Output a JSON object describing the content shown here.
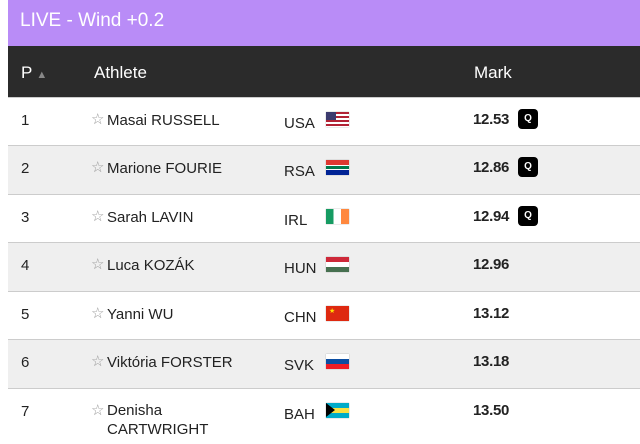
{
  "title": "LIVE - Wind +0.2",
  "header": {
    "pos": "P",
    "sort_icon": "triangle-up",
    "athlete": "Athlete",
    "mark": "Mark"
  },
  "rows": [
    {
      "pos": "1",
      "name": "Masai RUSSELL",
      "country": "USA",
      "mark": "12.53",
      "q": "Q"
    },
    {
      "pos": "2",
      "name": "Marione FOURIE",
      "country": "RSA",
      "mark": "12.86",
      "q": "Q"
    },
    {
      "pos": "3",
      "name": "Sarah LAVIN",
      "country": "IRL",
      "mark": "12.94",
      "q": "Q"
    },
    {
      "pos": "4",
      "name": "Luca KOZÁK",
      "country": "HUN",
      "mark": "12.96"
    },
    {
      "pos": "5",
      "name": "Yanni WU",
      "country": "CHN",
      "mark": "13.12"
    },
    {
      "pos": "6",
      "name": "Viktória FORSTER",
      "country": "SVK",
      "mark": "13.18"
    },
    {
      "pos": "7",
      "name": "Denisha CARTWRIGHT",
      "country": "BAH",
      "mark": "13.50"
    }
  ],
  "star_icon": "☆"
}
